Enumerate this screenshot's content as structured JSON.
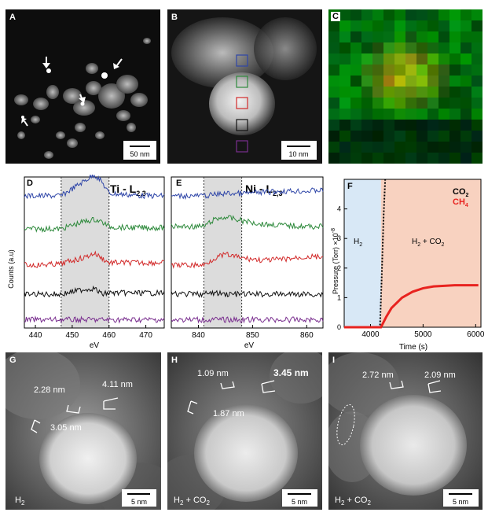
{
  "panels": {
    "A": {
      "label": "A",
      "scalebar": "50 nm"
    },
    "B": {
      "label": "B",
      "scalebar": "10 nm",
      "box_colors": [
        "#2f46a8",
        "#2e8a3c",
        "#d22a2a",
        "#111111",
        "#7a2f8f"
      ]
    },
    "C": {
      "label": "C"
    },
    "D": {
      "label": "D",
      "title": "Ti - L",
      "title_sub": "2,3",
      "ylabel": "Counts (a.u)",
      "xlabel": "eV",
      "xticks": [
        "440",
        "450",
        "460",
        "470"
      ]
    },
    "E": {
      "label": "E",
      "title": "Ni - L",
      "title_sub": "2,3",
      "xlabel": "eV",
      "xticks": [
        "840",
        "850",
        "860"
      ]
    },
    "F": {
      "label": "F",
      "ylabel": "Pressure (Torr) ×10",
      "ylabel_exp": "-8",
      "xlabel": "Time (s)",
      "xticks": [
        "4000",
        "5000",
        "6000"
      ],
      "yticks": [
        "0",
        "1",
        "2",
        "3",
        "4"
      ],
      "legend": [
        {
          "name": "CO",
          "sub": "2",
          "color": "#000000"
        },
        {
          "name": "CH",
          "sub": "4",
          "color": "#e8231f"
        }
      ],
      "region_left": {
        "name": "H",
        "sub": "2"
      },
      "region_right": {
        "text": "H",
        "sub": "2",
        "rest": " + CO",
        "sub2": "2"
      }
    },
    "G": {
      "label": "G",
      "condition": "H",
      "condition_sub": "2",
      "m1": "2.28 nm",
      "m2": "4.11 nm",
      "m3": "3.05 nm",
      "scalebar": "5 nm"
    },
    "H": {
      "label": "H",
      "condition": "H",
      "condition_sub": "2",
      "condition_rest": " + CO",
      "condition_sub2": "2",
      "m1": "1.09 nm",
      "m2": "3.45 nm",
      "m3": "1.87 nm",
      "scalebar": "5 nm"
    },
    "I": {
      "label": "I",
      "condition": "H",
      "condition_sub": "2",
      "condition_rest": " + CO",
      "condition_sub2": "2",
      "m1": "2.72 nm",
      "m2": "2.09 nm",
      "scalebar": "5 nm"
    }
  },
  "chart_data": [
    {
      "type": "line",
      "panel": "D",
      "title": "Ti - L2,3",
      "xlabel": "eV",
      "ylabel": "Counts (a.u)",
      "xlim": [
        437,
        475
      ],
      "shaded_range": [
        447,
        460
      ],
      "series": [
        {
          "color": "#2f46a8",
          "x": [
            440,
            447,
            450,
            453,
            456,
            458,
            460,
            465,
            470,
            475
          ],
          "values": [
            0.2,
            0.2,
            0.5,
            0.8,
            1.1,
            0.8,
            0.3,
            0.25,
            0.2,
            0.2
          ]
        },
        {
          "color": "#2e8a3c",
          "x": [
            440,
            447,
            450,
            453,
            456,
            458,
            460,
            465,
            470,
            475
          ],
          "values": [
            0.2,
            0.2,
            0.35,
            0.5,
            0.6,
            0.5,
            0.3,
            0.25,
            0.25,
            0.25
          ]
        },
        {
          "color": "#d22a2a",
          "x": [
            440,
            447,
            450,
            453,
            456,
            458,
            460,
            465,
            470,
            475
          ],
          "values": [
            0.1,
            0.15,
            0.3,
            0.4,
            0.6,
            0.4,
            0.2,
            0.2,
            0.2,
            0.2
          ]
        },
        {
          "color": "#111111",
          "x": [
            440,
            447,
            450,
            453,
            456,
            458,
            460,
            465,
            470,
            475
          ],
          "values": [
            0.1,
            0.1,
            0.2,
            0.3,
            0.35,
            0.1,
            0.15,
            0.15,
            0.15,
            0.15
          ]
        },
        {
          "color": "#7a2f8f",
          "x": [
            440,
            447,
            450,
            453,
            456,
            458,
            460,
            465,
            470,
            475
          ],
          "values": [
            0.05,
            0.05,
            0.05,
            0.05,
            0.05,
            0.05,
            0.05,
            0.05,
            0.05,
            0.05
          ]
        }
      ]
    },
    {
      "type": "line",
      "panel": "E",
      "title": "Ni - L2,3",
      "xlabel": "eV",
      "xlim": [
        835,
        863
      ],
      "shaded_range": [
        841,
        848
      ],
      "series": [
        {
          "color": "#2f46a8",
          "x": [
            836,
            841,
            843,
            845,
            848,
            852,
            856,
            860,
            863
          ],
          "values": [
            0.2,
            0.2,
            0.25,
            0.3,
            0.3,
            0.35,
            0.4,
            0.4,
            0.45
          ]
        },
        {
          "color": "#2e8a3c",
          "x": [
            836,
            841,
            843,
            845,
            848,
            852,
            856,
            860,
            863
          ],
          "values": [
            0.3,
            0.3,
            0.6,
            0.7,
            0.55,
            0.4,
            0.35,
            0.3,
            0.3
          ]
        },
        {
          "color": "#d22a2a",
          "x": [
            836,
            841,
            843,
            845,
            848,
            852,
            856,
            860,
            863
          ],
          "values": [
            0.1,
            0.1,
            0.4,
            0.55,
            0.4,
            0.3,
            0.35,
            0.45,
            0.45
          ]
        },
        {
          "color": "#111111",
          "x": [
            836,
            841,
            843,
            845,
            848,
            852,
            856,
            860,
            863
          ],
          "values": [
            0.1,
            0.1,
            0.15,
            0.1,
            0.1,
            0.1,
            0.1,
            0.1,
            0.1
          ]
        },
        {
          "color": "#7a2f8f",
          "x": [
            836,
            841,
            843,
            845,
            848,
            852,
            856,
            860,
            863
          ],
          "values": [
            0.05,
            0.05,
            0.05,
            0.05,
            0.05,
            0.05,
            0.05,
            0.05,
            0.05
          ]
        }
      ]
    },
    {
      "type": "line",
      "panel": "F",
      "xlabel": "Time (s)",
      "ylabel": "Pressure (Torr) ×10-8",
      "xlim": [
        3500,
        6100
      ],
      "ylim": [
        0,
        5
      ],
      "shaded_left_range": [
        3500,
        4200
      ],
      "shaded_right_range": [
        4200,
        6100
      ],
      "series": [
        {
          "name": "CO2",
          "color": "#000000",
          "x": [
            3500,
            4180,
            4210,
            4250,
            4280
          ],
          "values": [
            0.0,
            0.0,
            1.5,
            3.8,
            5.0
          ]
        },
        {
          "name": "CH4",
          "color": "#e8231f",
          "x": [
            3500,
            4200,
            4300,
            4400,
            4600,
            4800,
            5000,
            5200,
            5400,
            5600,
            5800,
            6050
          ],
          "values": [
            0.0,
            0.0,
            0.35,
            0.65,
            1.0,
            1.2,
            1.32,
            1.38,
            1.4,
            1.42,
            1.42,
            1.42
          ]
        }
      ]
    }
  ]
}
